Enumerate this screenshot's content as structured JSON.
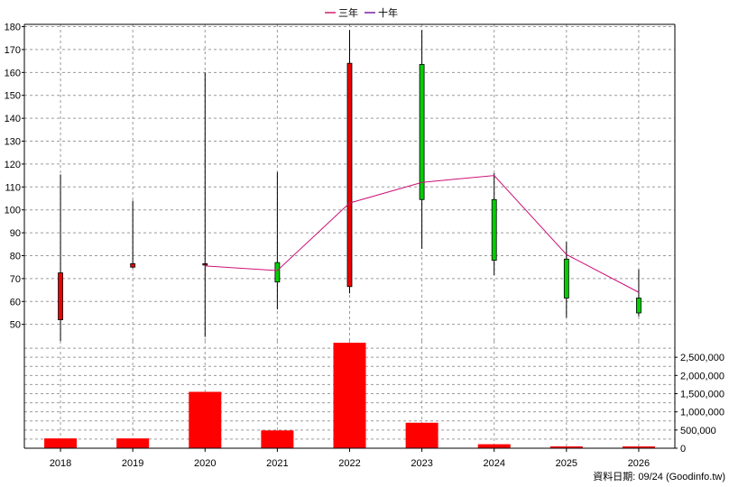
{
  "legend": {
    "items": [
      {
        "label": "三年",
        "color": "#d21e6e"
      },
      {
        "label": "十年",
        "color": "#7a1fa0"
      }
    ]
  },
  "credit": "資料日期: 09/24  (Goodinfo.tw)",
  "colors": {
    "up_candle": "#ee0000",
    "down_candle": "#00d000",
    "volume_bar": "#ff0000",
    "ma_line": "#cc1177",
    "grid": "#9a9a9a"
  },
  "chart_data": [
    {
      "type": "candlestick",
      "categories": [
        "2018",
        "2019",
        "2020",
        "2021",
        "2022",
        "2023",
        "2024",
        "2025",
        "2026"
      ],
      "series": [
        {
          "open": 52,
          "close": 72.5,
          "high": 115.5,
          "low": 42.5
        },
        {
          "open": 75,
          "close": 76.5,
          "high": 104,
          "low": 74.5
        },
        {
          "open": 76,
          "close": 76.5,
          "high": 160,
          "low": 44.5
        },
        {
          "open": 77,
          "close": 68.5,
          "high": 116.5,
          "low": 56.5
        },
        {
          "open": 66.5,
          "close": 164,
          "high": 178.5,
          "low": 63.5
        },
        {
          "open": 163.5,
          "close": 104.5,
          "high": 178.5,
          "low": 83
        },
        {
          "open": 104.5,
          "close": 78,
          "high": 116,
          "low": 71.5
        },
        {
          "open": 78.5,
          "close": 61.5,
          "high": 86,
          "low": 53
        },
        {
          "open": 61.5,
          "close": 55,
          "high": 74,
          "low": 53.5
        }
      ],
      "ma_line": {
        "x": [
          "2020",
          "2021",
          "2022",
          "2023",
          "2024",
          "2025",
          "2026"
        ],
        "values": [
          75.5,
          73.5,
          103,
          112,
          115,
          80.5,
          64
        ]
      },
      "ylim": [
        42,
        181
      ],
      "yticks": [
        50,
        60,
        70,
        80,
        90,
        100,
        110,
        120,
        130,
        140,
        150,
        160,
        170,
        180
      ],
      "grid": true
    },
    {
      "type": "bar",
      "categories": [
        "2018",
        "2019",
        "2020",
        "2021",
        "2022",
        "2023",
        "2024",
        "2025",
        "2026"
      ],
      "values": [
        270000,
        270000,
        1550000,
        490000,
        2900000,
        700000,
        110000,
        50000,
        50000
      ],
      "ylim": [
        0,
        2950000
      ],
      "yticks": [
        0,
        500000,
        1000000,
        1500000,
        2000000,
        2500000
      ],
      "ytick_labels": [
        "0",
        "500,000",
        "1,000,000",
        "1,500,000",
        "2,000,000",
        "2,500,000"
      ],
      "grid": true
    }
  ]
}
